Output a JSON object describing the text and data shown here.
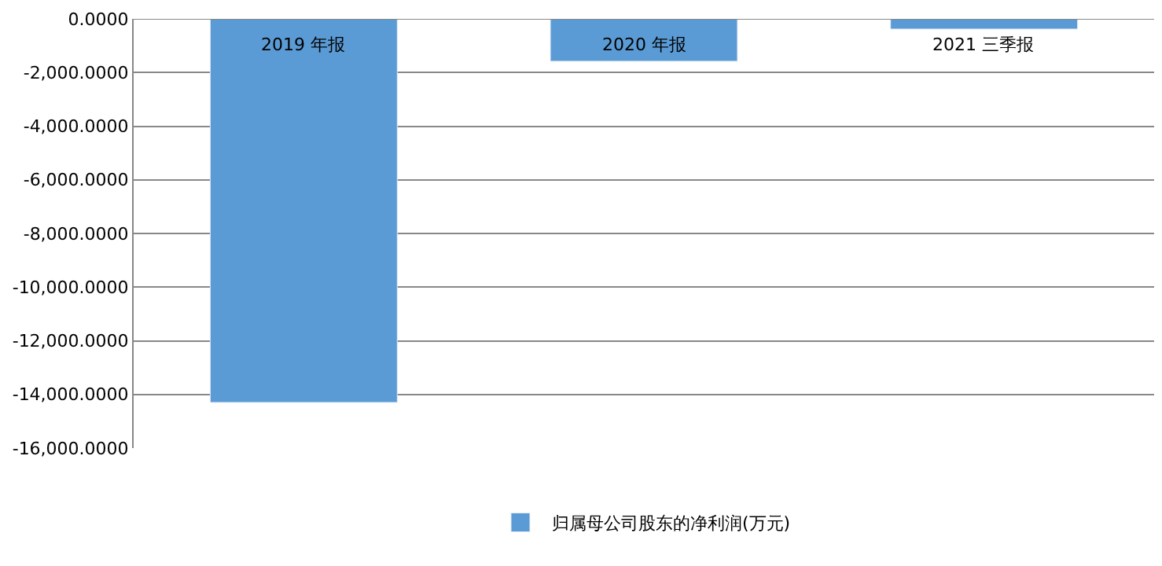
{
  "chart_data": {
    "type": "bar",
    "categories": [
      "2019 年报",
      "2020 年报",
      "2021 三季报"
    ],
    "series": [
      {
        "name": "归属母公司股东的净利润(万元)",
        "color": "#5b9bd5",
        "values": [
          -14300,
          -1580,
          -380
        ]
      }
    ],
    "ylim": [
      -16000,
      0
    ],
    "yticks": [
      {
        "value": 0,
        "label": "0.0000"
      },
      {
        "value": -2000,
        "label": "-2,000.0000"
      },
      {
        "value": -4000,
        "label": "-4,000.0000"
      },
      {
        "value": -6000,
        "label": "-6,000.0000"
      },
      {
        "value": -8000,
        "label": "-8,000.0000"
      },
      {
        "value": -10000,
        "label": "-10,000.0000"
      },
      {
        "value": -12000,
        "label": "-12,000.0000"
      },
      {
        "value": -14000,
        "label": "-14,000.0000"
      },
      {
        "value": -16000,
        "label": "-16,000.0000"
      }
    ],
    "grid": "y",
    "legend": "bottom"
  }
}
